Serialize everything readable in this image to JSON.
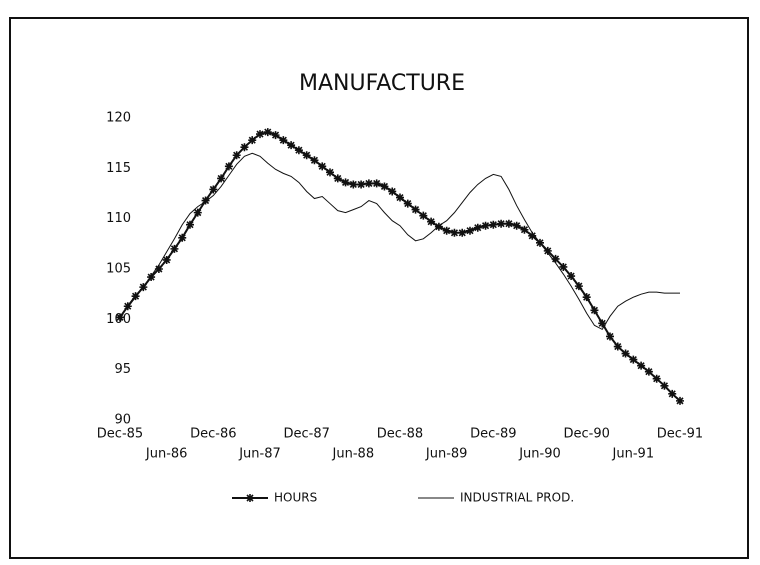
{
  "chart_data": {
    "type": "line",
    "title": "MANUFACTURE",
    "categories": [
      "Dec-85",
      null,
      null,
      null,
      null,
      null,
      "Jun-86",
      null,
      null,
      null,
      null,
      null,
      "Dec-86",
      null,
      null,
      null,
      null,
      null,
      "Jun-87",
      null,
      null,
      null,
      null,
      null,
      "Dec-87",
      null,
      null,
      null,
      null,
      null,
      "Jun-88",
      null,
      null,
      null,
      null,
      null,
      "Dec-88",
      null,
      null,
      null,
      null,
      null,
      "Jun-89",
      null,
      null,
      null,
      null,
      null,
      "Dec-89",
      null,
      null,
      null,
      null,
      null,
      "Jun-90",
      null,
      null,
      null,
      null,
      null,
      "Dec-90",
      null,
      null,
      null,
      null,
      null,
      "Jun-91",
      null,
      null,
      null,
      null,
      null,
      "Dec-91"
    ],
    "series": [
      {
        "name": "HOURS",
        "color": "#111111",
        "marker": "star",
        "values": [
          100.2,
          101.3,
          102.3,
          103.2,
          104.2,
          105.0,
          105.9,
          107.0,
          108.1,
          109.4,
          110.6,
          111.8,
          112.9,
          114.0,
          115.2,
          116.3,
          117.1,
          117.8,
          118.4,
          118.6,
          118.3,
          117.8,
          117.3,
          116.8,
          116.3,
          115.8,
          115.2,
          114.6,
          114.0,
          113.6,
          113.4,
          113.4,
          113.5,
          113.5,
          113.2,
          112.7,
          112.1,
          111.5,
          110.9,
          110.3,
          109.7,
          109.2,
          108.8,
          108.6,
          108.6,
          108.8,
          109.1,
          109.3,
          109.4,
          109.5,
          109.5,
          109.3,
          108.9,
          108.3,
          107.6,
          106.8,
          106.0,
          105.2,
          104.3,
          103.3,
          102.2,
          100.9,
          99.6,
          98.3,
          97.3,
          96.6,
          96.0,
          95.4,
          94.8,
          94.1,
          93.4,
          92.6,
          91.9
        ]
      },
      {
        "name": "INDUSTRIAL PROD.",
        "color": "#111111",
        "values": [
          100.2,
          101.2,
          102.2,
          103.2,
          104.3,
          105.4,
          106.7,
          108.0,
          109.4,
          110.5,
          111.2,
          111.7,
          112.3,
          113.2,
          114.3,
          115.4,
          116.2,
          116.5,
          116.2,
          115.5,
          114.9,
          114.5,
          114.2,
          113.6,
          112.7,
          112.0,
          112.2,
          111.5,
          110.8,
          110.6,
          110.9,
          111.2,
          111.8,
          111.5,
          110.6,
          109.8,
          109.3,
          108.4,
          107.8,
          108.0,
          108.6,
          109.3,
          109.8,
          110.6,
          111.6,
          112.6,
          113.4,
          114.0,
          114.4,
          114.2,
          112.9,
          111.3,
          109.9,
          108.6,
          107.6,
          106.6,
          105.6,
          104.5,
          103.3,
          102.0,
          100.6,
          99.4,
          99.0,
          100.3,
          101.3,
          101.8,
          102.2,
          102.5,
          102.7,
          102.7,
          102.6,
          102.6,
          102.6
        ]
      }
    ],
    "ylim": [
      90,
      120
    ],
    "yticks": [
      90,
      95,
      100,
      105,
      110,
      115,
      120
    ],
    "grid": false
  }
}
